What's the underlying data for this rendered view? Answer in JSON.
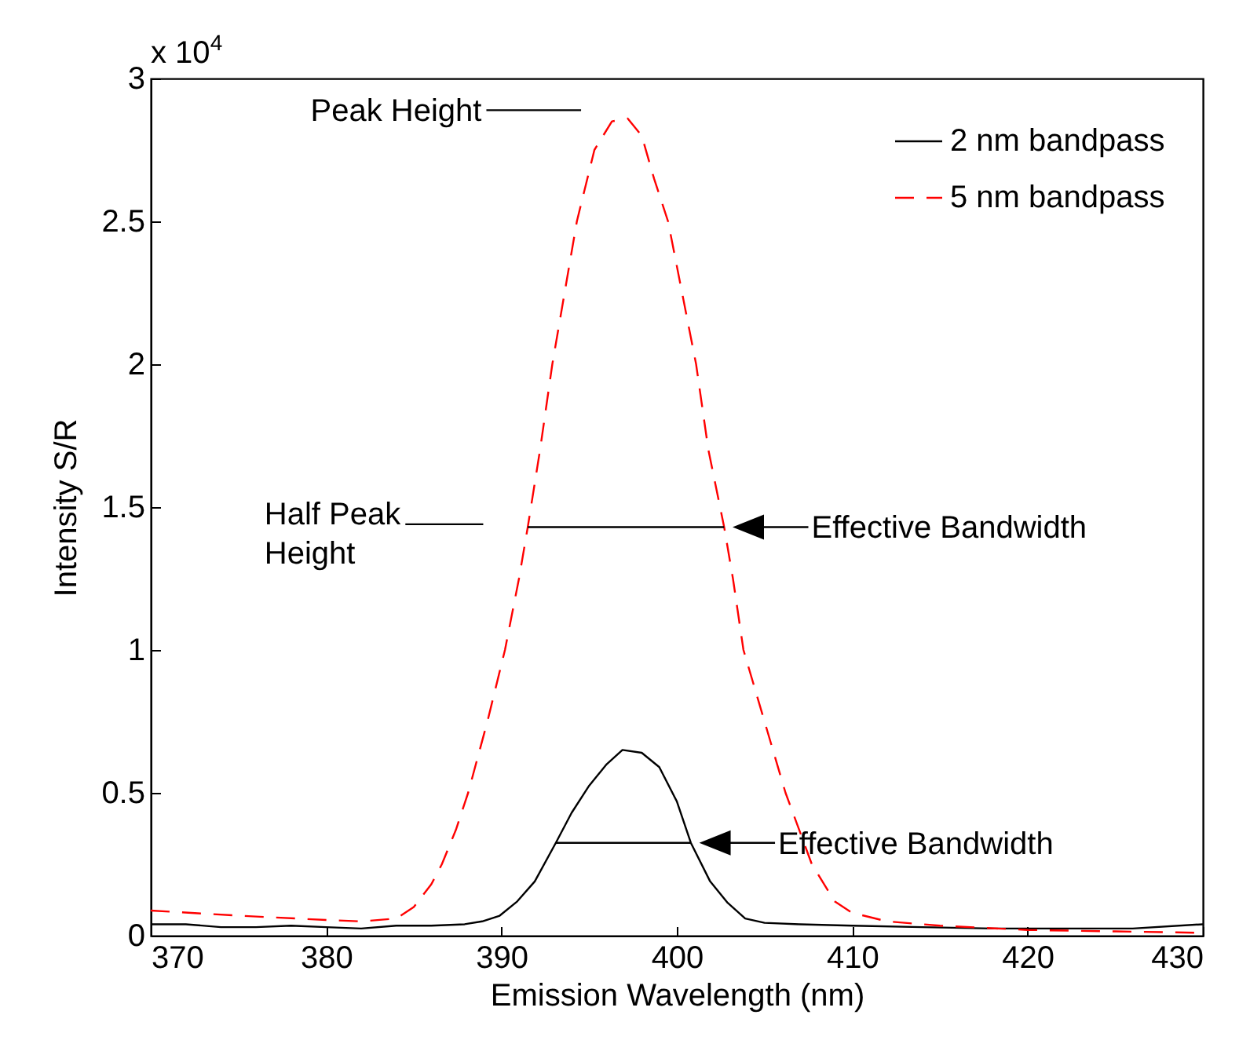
{
  "chart_data": {
    "type": "line",
    "xlabel": "Emission Wavelength (nm)",
    "ylabel": "Intensity S/R",
    "xlim": [
      370,
      430
    ],
    "xticks": [
      370,
      380,
      390,
      400,
      410,
      420,
      430
    ],
    "ylim": [
      0,
      3
    ],
    "yticks": [
      0,
      0.5,
      1,
      1.5,
      2,
      2.5,
      3
    ],
    "grid": false,
    "legend": "top right",
    "marker": "none",
    "series": [
      {
        "name": "2 nm bandpass",
        "color": "#000000",
        "line_style": "solid",
        "x": [
          370,
          372,
          374,
          376,
          378,
          380,
          382,
          384,
          386,
          387.9,
          388.9,
          389.9,
          390.9,
          391.9,
          393.1,
          394,
          395,
          396,
          396.9,
          398,
          399,
          400,
          400.8,
          401.9,
          402.9,
          403.9,
          405,
          407,
          410,
          414,
          418,
          422,
          426,
          430
        ],
        "values": [
          0.04,
          0.04,
          0.03,
          0.03,
          0.035,
          0.03,
          0.025,
          0.035,
          0.035,
          0.04,
          0.05,
          0.07,
          0.12,
          0.19,
          0.325,
          0.43,
          0.525,
          0.6,
          0.65,
          0.64,
          0.59,
          0.47,
          0.325,
          0.19,
          0.115,
          0.06,
          0.045,
          0.04,
          0.035,
          0.03,
          0.025,
          0.025,
          0.025,
          0.04
        ]
      },
      {
        "name": "5 nm bandpass",
        "color": "#ff0000",
        "line_style": "dashed",
        "x": [
          370,
          375,
          380,
          382,
          384,
          385,
          386,
          386.6,
          387.4,
          388.1,
          389.2,
          390.2,
          391,
          391.5,
          392.2,
          392.9,
          393.6,
          394.3,
          395.3,
          396.3,
          397.2,
          398,
          398.7,
          399.5,
          400.3,
          401.1,
          401.8,
          402.7,
          403.2,
          403.8,
          405,
          406.2,
          407.7,
          409,
          410,
          412,
          415,
          420,
          425,
          430
        ],
        "values": [
          0.088,
          0.07,
          0.055,
          0.05,
          0.06,
          0.1,
          0.18,
          0.25,
          0.37,
          0.5,
          0.75,
          1,
          1.25,
          1.43,
          1.7,
          2,
          2.25,
          2.5,
          2.75,
          2.85,
          2.86,
          2.8,
          2.65,
          2.5,
          2.25,
          2,
          1.7,
          1.43,
          1.25,
          1,
          0.75,
          0.5,
          0.25,
          0.12,
          0.08,
          0.05,
          0.035,
          0.02,
          0.015,
          0.01
        ]
      },
      {
        "color": "#000000",
        "line_style": "solid",
        "x": [
          391.5,
          402.7
        ],
        "values": [
          1.43,
          1.43
        ]
      },
      {
        "color": "#000000",
        "line_style": "solid",
        "x": [
          393.1,
          400.8
        ],
        "values": [
          0.325,
          0.325
        ]
      }
    ],
    "annotations": [
      "x 10$^{4}$",
      "Peak Height",
      "Half Peak\nHeight",
      {
        "text": "Effective Bandwidth",
        "x": 402.7,
        "y": 1.43
      },
      {
        "text": "Effective Bandwidth",
        "x": 400.8,
        "y": 0.325
      }
    ]
  }
}
